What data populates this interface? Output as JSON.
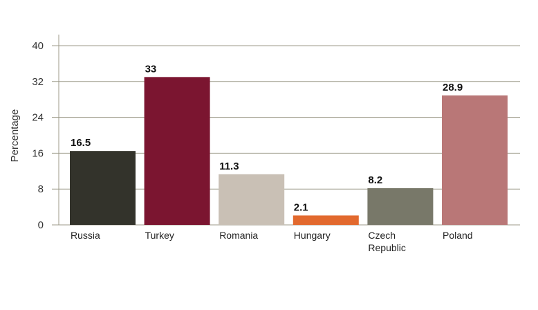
{
  "chart_data": {
    "type": "bar",
    "categories": [
      "Russia",
      "Turkey",
      "Romania",
      "Hungary",
      "Czech Republic",
      "Poland"
    ],
    "category_lines": [
      [
        "Russia"
      ],
      [
        "Turkey"
      ],
      [
        "Romania"
      ],
      [
        "Hungary"
      ],
      [
        "Czech",
        "Republic"
      ],
      [
        "Poland"
      ]
    ],
    "values": [
      16.5,
      33,
      11.3,
      2.1,
      8.2,
      28.9
    ],
    "value_labels": [
      "16.5",
      "33",
      "11.3",
      "2.1",
      "8.2",
      "28.9"
    ],
    "colors": [
      "#33332b",
      "#7b1530",
      "#c9c0b5",
      "#e2692e",
      "#787869",
      "#b97777"
    ],
    "ylabel": "Percentage",
    "ylim": [
      0,
      40
    ],
    "yticks": [
      0,
      8,
      16,
      24,
      32,
      40
    ],
    "grid": true,
    "legend": "none"
  }
}
